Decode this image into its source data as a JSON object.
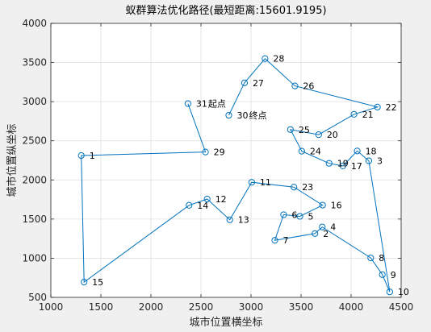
{
  "chart_data": {
    "type": "line",
    "title": "蚁群算法优化路径(最短距离:15601.9195)",
    "xlabel": "城市位置横坐标",
    "ylabel": "城市位置纵坐标",
    "xlim": [
      1000,
      4500
    ],
    "ylim": [
      500,
      4000
    ],
    "xticks": [
      1000,
      1500,
      2000,
      2500,
      3000,
      3500,
      4000,
      4500
    ],
    "yticks": [
      500,
      1000,
      1500,
      2000,
      2500,
      3000,
      3500,
      4000
    ],
    "grid": true,
    "line_color": "#0072bd",
    "cities": [
      {
        "id": "1",
        "x": 1304,
        "y": 2312
      },
      {
        "id": "2",
        "x": 3639,
        "y": 1315
      },
      {
        "id": "3",
        "x": 4177,
        "y": 2244
      },
      {
        "id": "4",
        "x": 3712,
        "y": 1399
      },
      {
        "id": "5",
        "x": 3488,
        "y": 1535
      },
      {
        "id": "6",
        "x": 3326,
        "y": 1556
      },
      {
        "id": "7",
        "x": 3238,
        "y": 1229
      },
      {
        "id": "8",
        "x": 4196,
        "y": 1004
      },
      {
        "id": "9",
        "x": 4312,
        "y": 790
      },
      {
        "id": "10",
        "x": 4386,
        "y": 570
      },
      {
        "id": "11",
        "x": 3007,
        "y": 1970
      },
      {
        "id": "12",
        "x": 2562,
        "y": 1756
      },
      {
        "id": "13",
        "x": 2788,
        "y": 1491
      },
      {
        "id": "14",
        "x": 2381,
        "y": 1676
      },
      {
        "id": "15",
        "x": 1332,
        "y": 695
      },
      {
        "id": "16",
        "x": 3715,
        "y": 1678
      },
      {
        "id": "17",
        "x": 3918,
        "y": 2179
      },
      {
        "id": "18",
        "x": 4061,
        "y": 2370
      },
      {
        "id": "19",
        "x": 3780,
        "y": 2212
      },
      {
        "id": "20",
        "x": 3676,
        "y": 2578
      },
      {
        "id": "21",
        "x": 4029,
        "y": 2838
      },
      {
        "id": "22",
        "x": 4263,
        "y": 2931
      },
      {
        "id": "23",
        "x": 3429,
        "y": 1908
      },
      {
        "id": "24",
        "x": 3507,
        "y": 2367
      },
      {
        "id": "25",
        "x": 3394,
        "y": 2643
      },
      {
        "id": "26",
        "x": 3439,
        "y": 3201
      },
      {
        "id": "27",
        "x": 2935,
        "y": 3240
      },
      {
        "id": "28",
        "x": 3140,
        "y": 3550
      },
      {
        "id": "29",
        "x": 2545,
        "y": 2357
      },
      {
        "id": "30",
        "x": 2778,
        "y": 2826
      },
      {
        "id": "31",
        "x": 2370,
        "y": 2975
      }
    ],
    "route": [
      "31",
      "29",
      "1",
      "15",
      "14",
      "12",
      "13",
      "11",
      "23",
      "16",
      "5",
      "6",
      "7",
      "2",
      "4",
      "8",
      "9",
      "10",
      "3",
      "18",
      "17",
      "19",
      "24",
      "25",
      "20",
      "21",
      "22",
      "26",
      "28",
      "27",
      "30"
    ],
    "annotations": [
      {
        "city": "31",
        "text": "起点"
      },
      {
        "city": "30",
        "text": "终点"
      }
    ]
  }
}
